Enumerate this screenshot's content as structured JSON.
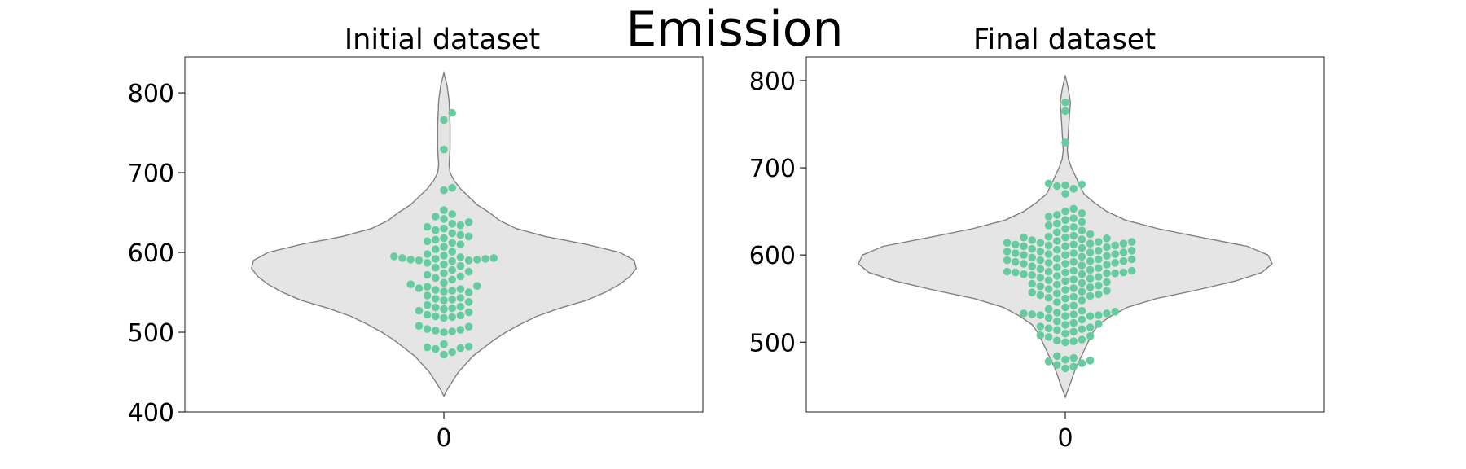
{
  "figure_title": "Emission",
  "chart_data": [
    {
      "type": "violin",
      "title": "Initial dataset",
      "xlabel": "",
      "ylabel": "",
      "categories": [
        "0"
      ],
      "ylim": [
        400,
        845
      ],
      "yticks": [
        400,
        500,
        600,
        700,
        800
      ],
      "grid": false,
      "violin_color": "#e5e5e5",
      "violin_edge": "#808080",
      "point_color": "#66cc9f",
      "density": [
        [
          420,
          0.0
        ],
        [
          430,
          0.02
        ],
        [
          450,
          0.07
        ],
        [
          470,
          0.14
        ],
        [
          490,
          0.24
        ],
        [
          500,
          0.3
        ],
        [
          510,
          0.37
        ],
        [
          520,
          0.45
        ],
        [
          530,
          0.56
        ],
        [
          540,
          0.69
        ],
        [
          550,
          0.78
        ],
        [
          560,
          0.85
        ],
        [
          570,
          0.9
        ],
        [
          580,
          0.93
        ],
        [
          590,
          0.92
        ],
        [
          600,
          0.85
        ],
        [
          610,
          0.69
        ],
        [
          620,
          0.49
        ],
        [
          630,
          0.35
        ],
        [
          640,
          0.27
        ],
        [
          650,
          0.22
        ],
        [
          660,
          0.16
        ],
        [
          670,
          0.12
        ],
        [
          680,
          0.08
        ],
        [
          690,
          0.05
        ],
        [
          700,
          0.03
        ],
        [
          710,
          0.025
        ],
        [
          730,
          0.03
        ],
        [
          760,
          0.03
        ],
        [
          790,
          0.025
        ],
        [
          810,
          0.015
        ],
        [
          825,
          0.0
        ]
      ],
      "points": [
        472,
        475,
        479,
        480,
        481,
        482,
        485,
        500,
        501,
        502,
        503,
        504,
        507,
        508,
        518,
        519,
        520,
        521,
        522,
        525,
        527,
        529,
        530,
        531,
        532,
        534,
        538,
        540,
        541,
        542,
        543,
        546,
        550,
        551,
        552,
        553,
        554,
        555,
        557,
        558,
        560,
        562,
        566,
        568,
        570,
        572,
        574,
        576,
        578,
        581,
        583,
        585,
        587,
        589,
        590,
        590,
        591,
        591,
        592,
        592,
        593,
        593,
        594,
        595,
        596,
        598,
        601,
        604,
        607,
        610,
        612,
        614,
        616,
        618,
        620,
        622,
        624,
        628,
        630,
        632,
        634,
        636,
        638,
        642,
        645,
        648,
        653,
        678,
        681,
        729,
        766,
        775
      ]
    },
    {
      "type": "violin",
      "title": "Final dataset",
      "xlabel": "",
      "ylabel": "",
      "categories": [
        "0"
      ],
      "ylim": [
        420,
        827
      ],
      "yticks": [
        500,
        600,
        700,
        800
      ],
      "grid": false,
      "violin_color": "#e5e5e5",
      "violin_edge": "#808080",
      "point_color": "#66cc9f",
      "density": [
        [
          437,
          0.0
        ],
        [
          450,
          0.02
        ],
        [
          470,
          0.05
        ],
        [
          490,
          0.09
        ],
        [
          500,
          0.11
        ],
        [
          510,
          0.13
        ],
        [
          520,
          0.16
        ],
        [
          530,
          0.22
        ],
        [
          540,
          0.3
        ],
        [
          550,
          0.44
        ],
        [
          560,
          0.64
        ],
        [
          570,
          0.82
        ],
        [
          580,
          0.95
        ],
        [
          590,
          1.0
        ],
        [
          600,
          0.98
        ],
        [
          610,
          0.88
        ],
        [
          620,
          0.66
        ],
        [
          630,
          0.45
        ],
        [
          640,
          0.29
        ],
        [
          650,
          0.2
        ],
        [
          660,
          0.14
        ],
        [
          670,
          0.09
        ],
        [
          680,
          0.07
        ],
        [
          690,
          0.05
        ],
        [
          700,
          0.03
        ],
        [
          710,
          0.015
        ],
        [
          720,
          0.01
        ],
        [
          740,
          0.015
        ],
        [
          760,
          0.02
        ],
        [
          775,
          0.025
        ],
        [
          790,
          0.015
        ],
        [
          806,
          0.0
        ]
      ],
      "points": [
        470,
        472,
        474,
        476,
        478,
        479,
        480,
        482,
        484,
        500,
        501,
        502,
        503,
        506,
        507,
        508,
        510,
        512,
        514,
        515,
        516,
        517,
        518,
        520,
        521,
        522,
        524,
        526,
        528,
        530,
        530,
        531,
        531,
        532,
        532,
        533,
        533,
        534,
        535,
        536,
        538,
        540,
        542,
        546,
        548,
        550,
        551,
        552,
        553,
        554,
        555,
        556,
        557,
        558,
        559,
        560,
        561,
        562,
        563,
        564,
        565,
        566,
        567,
        568,
        569,
        570,
        571,
        572,
        573,
        574,
        575,
        576,
        577,
        578,
        578,
        579,
        579,
        580,
        580,
        580,
        581,
        581,
        582,
        582,
        583,
        584,
        585,
        586,
        587,
        588,
        589,
        590,
        590,
        591,
        591,
        592,
        592,
        593,
        593,
        594,
        594,
        595,
        595,
        596,
        597,
        598,
        599,
        600,
        600,
        601,
        601,
        602,
        602,
        603,
        603,
        604,
        604,
        605,
        605,
        606,
        607,
        608,
        609,
        610,
        610,
        611,
        611,
        612,
        612,
        613,
        613,
        614,
        614,
        615,
        615,
        616,
        617,
        618,
        619,
        620,
        620,
        621,
        622,
        624,
        626,
        628,
        630,
        632,
        634,
        636,
        638,
        640,
        642,
        644,
        646,
        648,
        650,
        653,
        670,
        676,
        679,
        680,
        681,
        682,
        729,
        765,
        775
      ]
    }
  ]
}
